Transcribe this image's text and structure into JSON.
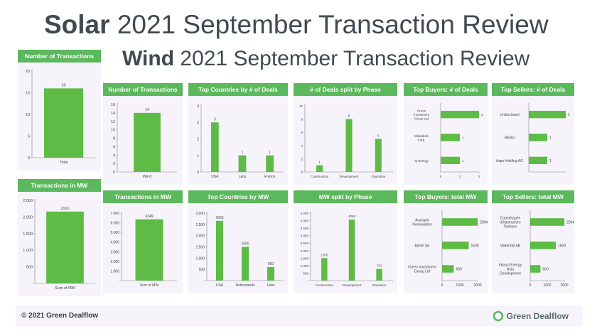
{
  "titles": {
    "solar_bold": "Solar",
    "solar_rest": " 2021 September Transaction Review",
    "wind_bold": "Wind",
    "wind_rest": " 2021 September Transaction Review"
  },
  "colors": {
    "accent": "#5cb85c",
    "bar": "#5dbb46",
    "card_bg": "#f6f3fa",
    "title": "#404a50"
  },
  "footer": {
    "copyright": "© 2021 Green Dealflow",
    "brand": "Green Dealflow",
    "logo_icon": "ring-logo-icon"
  },
  "chart_data": [
    {
      "id": "solar-tx",
      "title": "Number of Transactions",
      "type": "bar",
      "categories": [
        "Total"
      ],
      "values": [
        20
      ],
      "data_labels": [
        "20"
      ],
      "yticks": [
        "0",
        "5",
        "10",
        "15",
        "20"
      ],
      "ylim": [
        0,
        25
      ]
    },
    {
      "id": "solar-mw",
      "title": "Transactions in MW",
      "type": "bar",
      "categories": [
        "Sum of MW"
      ],
      "values": [
        2161
      ],
      "data_labels": [
        "2161"
      ],
      "yticks": [
        "-",
        "500",
        "1.000",
        "1.500",
        "2.000",
        "2.500"
      ],
      "ylim": [
        0,
        2500
      ]
    },
    {
      "id": "wind-tx",
      "title": "Number of Transactions",
      "type": "bar",
      "categories": [
        "Wind"
      ],
      "values": [
        14
      ],
      "data_labels": [
        "14"
      ],
      "yticks": [
        "0",
        "2",
        "4",
        "6",
        "8",
        "10",
        "12",
        "14",
        "16"
      ],
      "ylim": [
        0,
        16
      ]
    },
    {
      "id": "wind-countries",
      "title": "Top Countries by # of Deals",
      "type": "bar",
      "categories": [
        "USA",
        "Laos",
        "France"
      ],
      "values": [
        3,
        1,
        1
      ],
      "data_labels": [
        "3",
        "1",
        "1"
      ],
      "yticks": [
        "0",
        "1",
        "2",
        "3",
        "4"
      ],
      "ylim": [
        0,
        4
      ]
    },
    {
      "id": "wind-phase",
      "title": "# of Deals split by Phase",
      "type": "bar",
      "categories": [
        "Construction",
        "Development",
        "Operation"
      ],
      "values": [
        1,
        8,
        5
      ],
      "data_labels": [
        "1",
        "8",
        "5"
      ],
      "yticks": [
        "0",
        "2",
        "4",
        "6",
        "8",
        "10"
      ],
      "ylim": [
        0,
        10
      ]
    },
    {
      "id": "wind-buyers",
      "title": "Top Buyers: # of Deals",
      "type": "hbar",
      "categories": [
        "Green Investment Group Ltd",
        "Mitsubishi Corp.",
        "Q-Energy"
      ],
      "values": [
        2,
        1,
        1
      ],
      "data_labels": [
        "2",
        "1",
        "1"
      ],
      "xticks": [
        "0",
        "1",
        "2"
      ],
      "xlim": [
        0,
        2
      ]
    },
    {
      "id": "wind-sellers",
      "title": "Top Sellers: # of Deals",
      "type": "hbar",
      "categories": [
        "Undisclosed",
        "MEAG",
        "Axpo Holding AG"
      ],
      "values": [
        2,
        1,
        1
      ],
      "data_labels": [
        "2",
        "1",
        "1"
      ],
      "xticks": [],
      "xlim": [
        0,
        2
      ]
    },
    {
      "id": "wind-mw",
      "title": "Transactions in MW",
      "type": "bar",
      "categories": [
        "Sum of MW"
      ],
      "values": [
        6349
      ],
      "data_labels": [
        "6349"
      ],
      "yticks": [
        "-",
        "1.000",
        "2.000",
        "3.000",
        "4.000",
        "5.000",
        "6.000",
        "7.000"
      ],
      "ylim": [
        0,
        7000
      ]
    },
    {
      "id": "wind-countries-mw",
      "title": "Top Countries by MW",
      "type": "bar",
      "categories": [
        "USA",
        "Netherlands",
        "Laos"
      ],
      "values": [
        2659,
        1500,
        600
      ],
      "data_labels": [
        "2659",
        "1500",
        "600"
      ],
      "yticks": [
        "-",
        "500",
        "1.000",
        "1.500",
        "2.000",
        "2.500",
        "3.000"
      ],
      "ylim": [
        0,
        3000
      ]
    },
    {
      "id": "wind-mw-phase",
      "title": "MW split by Phase",
      "type": "bar",
      "categories": [
        "Construction",
        "Development",
        "Operation"
      ],
      "values": [
        1500,
        4068,
        781
      ],
      "data_labels": [
        "1500",
        "4068",
        "781"
      ],
      "yticks": [
        "-",
        "500",
        "1.000",
        "1.500",
        "2.000",
        "2.500",
        "3.000",
        "3.500",
        "4.000",
        "4.500"
      ],
      "ylim": [
        0,
        4500
      ]
    },
    {
      "id": "wind-buyers-mw",
      "title": "Top Buyers: total MW",
      "type": "hbar",
      "categories": [
        "Avangrid Renewables",
        "BASF SE",
        "Green Investment Group Ltd"
      ],
      "values": [
        2004,
        1500,
        660
      ],
      "data_labels": [
        "2004",
        "1500",
        "660"
      ],
      "xticks": [
        "0",
        "1000",
        "2000"
      ],
      "xlim": [
        0,
        2000
      ]
    },
    {
      "id": "wind-sellers-mw",
      "title": "Top Sellers: total MW",
      "type": "hbar",
      "categories": [
        "Copenhagen Infrastructure Partners",
        "Vattenfall AB",
        "Impact Energy Asia Development"
      ],
      "values": [
        2004,
        1500,
        600
      ],
      "data_labels": [
        "2004",
        "1500",
        "600"
      ],
      "xticks": [
        "0",
        "1000",
        "2000"
      ],
      "xlim": [
        0,
        2000
      ]
    }
  ]
}
